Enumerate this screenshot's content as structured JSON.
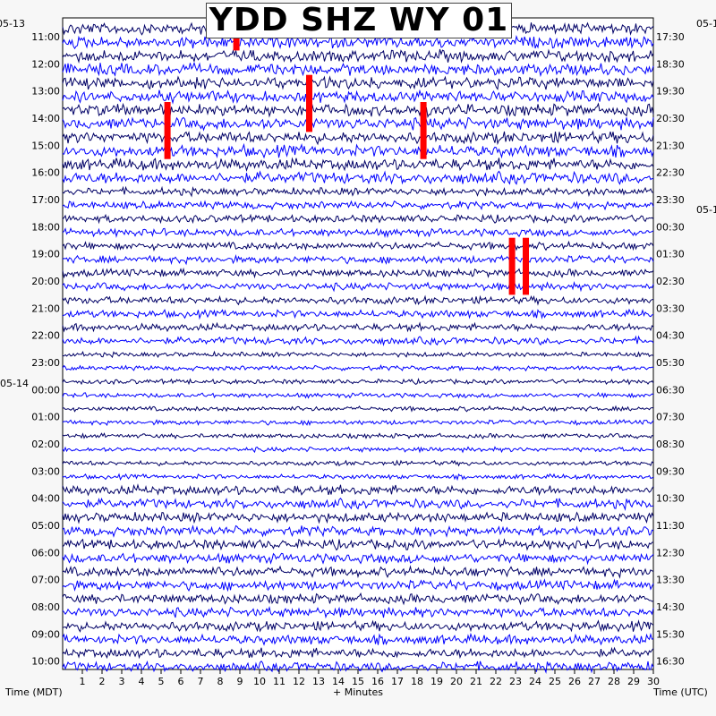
{
  "chart_data": {
    "type": "line",
    "title": "YDD SHZ WY 01",
    "xlabel": "+ Minutes",
    "ylabel_left": "Time (MDT)",
    "ylabel_right": "Time (UTC)",
    "x_ticks": [
      1,
      2,
      3,
      4,
      5,
      6,
      7,
      8,
      9,
      10,
      11,
      12,
      13,
      14,
      15,
      16,
      17,
      18,
      19,
      20,
      21,
      22,
      23,
      24,
      25,
      26,
      27,
      28,
      29,
      30
    ],
    "xlim": [
      0,
      30
    ],
    "lines_per_hour": 2,
    "left_date_labels": [
      "05-13",
      "05-14"
    ],
    "right_date_labels": [
      "05-1",
      "05-1"
    ],
    "left_hours": [
      "11:00",
      "12:00",
      "13:00",
      "14:00",
      "15:00",
      "16:00",
      "17:00",
      "18:00",
      "19:00",
      "20:00",
      "21:00",
      "22:00",
      "23:00",
      "00:00",
      "01:00",
      "02:00",
      "03:00",
      "04:00",
      "05:00",
      "06:00",
      "07:00",
      "08:00",
      "09:00",
      "10:00"
    ],
    "right_hours": [
      "17:30",
      "18:30",
      "19:30",
      "20:30",
      "21:30",
      "22:30",
      "23:30",
      "00:30",
      "01:30",
      "02:30",
      "03:30",
      "04:30",
      "05:30",
      "06:30",
      "07:30",
      "08:30",
      "09:30",
      "10:30",
      "11:30",
      "12:30",
      "13:30",
      "14:30",
      "15:30",
      "16:30"
    ],
    "trace_colors": [
      "#000066",
      "#0000ff"
    ],
    "clip_color": "#ff0000",
    "clipped_events": [
      {
        "row": 0,
        "minute": 8.8,
        "rows": 2
      },
      {
        "row": 4,
        "minute": 12.5,
        "rows": 4
      },
      {
        "row": 6,
        "minute": 5.3,
        "rows": 4
      },
      {
        "row": 6,
        "minute": 18.3,
        "rows": 4
      },
      {
        "row": 16,
        "minute": 22.8,
        "rows": 4
      },
      {
        "row": 16,
        "minute": 23.5,
        "rows": 4
      }
    ]
  }
}
